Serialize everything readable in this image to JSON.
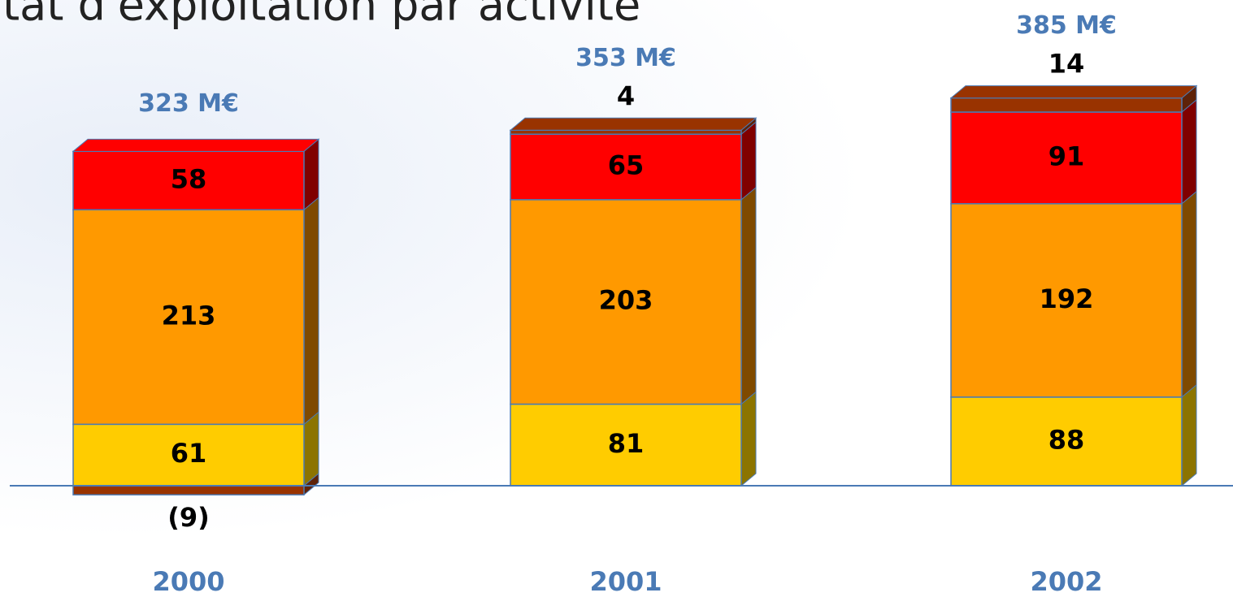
{
  "chart_data": {
    "type": "bar",
    "stacked": true,
    "title": "ltat d'exploitation par activité",
    "categories": [
      "2000",
      "2001",
      "2002"
    ],
    "series": [
      {
        "color": "#ffcc00",
        "side_color": "#8c7400",
        "values": [
          61,
          81,
          88
        ]
      },
      {
        "color": "#ff9900",
        "side_color": "#7f4a00",
        "values": [
          213,
          203,
          192
        ]
      },
      {
        "color": "#ff0000",
        "side_color": "#800000",
        "values": [
          58,
          65,
          91
        ]
      },
      {
        "color": "#993300",
        "side_color": "#5e2208",
        "values": [
          -9,
          4,
          14
        ],
        "value_labels": [
          "(9)",
          "4",
          "14"
        ]
      }
    ],
    "totals": {
      "values": [
        323,
        353,
        385
      ],
      "value_labels": [
        "323 M€",
        "353 M€",
        "385 M€"
      ],
      "color": "#4a7ab5"
    },
    "baseline_color": "#4a7ab5"
  }
}
